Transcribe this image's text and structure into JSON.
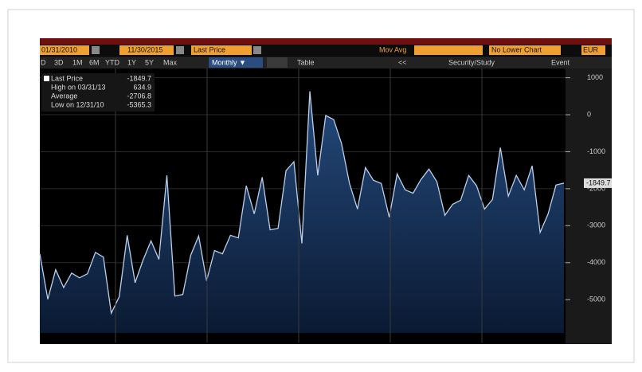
{
  "toolbar": {
    "start_date": "01/31/2010",
    "end_date": "11/30/2015",
    "field": "Last Price",
    "mov_avg": "Mov Avg",
    "lower_chart": "No Lower Chart",
    "currency": "EUR",
    "periods": [
      "D",
      "3D",
      "1M",
      "6M",
      "YTD",
      "1Y",
      "5Y",
      "Max"
    ],
    "frequency": "Monthly ▼",
    "table": "Table",
    "back": "<<",
    "study": "Security/Study",
    "event": "Event"
  },
  "chart_data": {
    "type": "area",
    "values": [
      -3760,
      -4990,
      -4190,
      -4670,
      -4280,
      -4410,
      -4300,
      -3720,
      -3850,
      -5365,
      -4920,
      -3260,
      -4540,
      -3930,
      -3410,
      -3910,
      -1640,
      -4900,
      -4860,
      -3800,
      -3280,
      -4490,
      -3670,
      -3760,
      -3260,
      -3330,
      -1920,
      -2680,
      -1690,
      -3110,
      -3070,
      -1510,
      -1270,
      -3480,
      635,
      -1640,
      -20,
      -130,
      -780,
      -1860,
      -2550,
      -1430,
      -1770,
      -1860,
      -2770,
      -1600,
      -2030,
      -2120,
      -1750,
      -1470,
      -1810,
      -2720,
      -2420,
      -2310,
      -1640,
      -1920,
      -2550,
      -2290,
      -890,
      -2200,
      -1640,
      -2030,
      -1380,
      -3180,
      -2680,
      -1900,
      -1850
    ],
    "color": "#b9d0ea",
    "fill": "#1d3d69",
    "ylim": [
      -5900,
      1250
    ],
    "yticks": [
      1000,
      0,
      -1000,
      -2000,
      -3000,
      -4000,
      -5000
    ],
    "legend": [
      {
        "label": "Last Price",
        "value": -1849.7
      },
      {
        "label": "High on 03/31/13",
        "value": 634.9
      },
      {
        "label": "Average",
        "value": -2706.8
      },
      {
        "label": "Low on 12/31/10",
        "value": -5365.3
      }
    ]
  }
}
